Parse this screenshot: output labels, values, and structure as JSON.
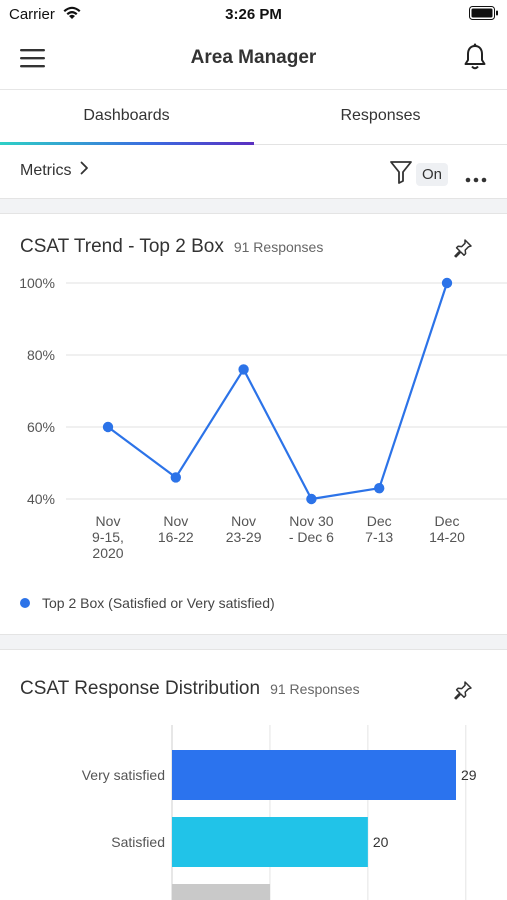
{
  "status": {
    "carrier": "Carrier",
    "time": "3:26 PM"
  },
  "header": {
    "title": "Area Manager"
  },
  "tabs": [
    {
      "label": "Dashboards",
      "active": true
    },
    {
      "label": "Responses",
      "active": false
    }
  ],
  "toolbar": {
    "metrics_label": "Metrics",
    "filter_state": "On"
  },
  "icons": {
    "menu": "hamburger-menu-icon",
    "bell": "bell-icon",
    "filter": "funnel-filter-icon",
    "more": "more-horizontal-icon",
    "pin": "pin-icon",
    "chevron": "chevron-right-icon"
  },
  "colors": {
    "line": "#2c73e8",
    "bar_very_satisfied": "#2b73ee",
    "bar_satisfied": "#21c3e8",
    "bar_neutral": "#c9c9c9",
    "tab_accent": "#3b6ae0"
  },
  "card_trend": {
    "title": "CSAT Trend - Top 2 Box",
    "count": "91",
    "count_label": "Responses",
    "legend": "Top 2 Box (Satisfied or Very satisfied)"
  },
  "card_dist": {
    "title": "CSAT Response Distribution",
    "count": "91",
    "count_label": "Responses"
  },
  "chart_data": [
    {
      "type": "line",
      "title": "CSAT Trend - Top 2 Box",
      "categories": [
        [
          "Nov",
          "9-15,",
          "2020"
        ],
        [
          "Nov",
          "16-22"
        ],
        [
          "Nov",
          "23-29"
        ],
        [
          "Nov 30",
          "- Dec 6"
        ],
        [
          "Dec",
          "7-13"
        ],
        [
          "Dec",
          "14-20"
        ]
      ],
      "series": [
        {
          "name": "Top 2 Box (Satisfied or Very satisfied)",
          "values": [
            60,
            46,
            76,
            40,
            43,
            100
          ]
        }
      ],
      "yticks": [
        "100%",
        "80%",
        "60%",
        "40%"
      ],
      "ytick_values": [
        100,
        80,
        60,
        40
      ],
      "ylim": [
        40,
        100
      ],
      "grid": true,
      "legend_position": "bottom-left"
    },
    {
      "type": "bar",
      "orientation": "horizontal",
      "title": "CSAT Response Distribution",
      "categories": [
        "Very satisfied",
        "Satisfied",
        ""
      ],
      "values": [
        29,
        20,
        null
      ],
      "xlim": [
        0,
        30
      ],
      "grid": true
    }
  ]
}
